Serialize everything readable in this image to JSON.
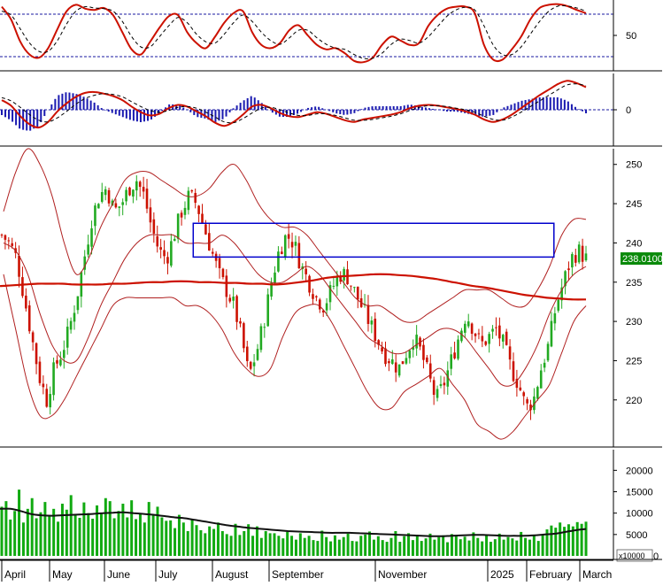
{
  "chart_data": [
    {
      "panel": "stochastic",
      "type": "line",
      "y_ticks": [
        50
      ],
      "reference_levels": [
        80,
        20
      ],
      "ylim": [
        0,
        100
      ],
      "series": [
        {
          "color": "#cc1100",
          "style": "solid",
          "values": [
            95,
            75,
            40,
            20,
            15,
            30,
            60,
            88,
            98,
            92,
            90,
            93,
            82,
            55,
            28,
            20,
            40,
            62,
            80,
            82,
            55,
            38,
            30,
            48,
            70,
            85,
            88,
            55,
            35,
            30,
            38,
            58,
            66,
            50,
            35,
            28,
            30,
            22,
            10,
            8,
            15,
            35,
            48,
            42,
            35,
            38,
            65,
            82,
            92,
            95,
            95,
            85,
            35,
            12,
            12,
            28,
            48,
            75,
            93,
            98,
            99,
            96,
            90,
            85
          ]
        },
        {
          "color": "#000000",
          "style": "dashed",
          "values": [
            88,
            82,
            60,
            38,
            25,
            25,
            42,
            68,
            88,
            95,
            93,
            92,
            88,
            72,
            48,
            32,
            32,
            48,
            65,
            78,
            70,
            52,
            40,
            38,
            52,
            70,
            82,
            72,
            55,
            42,
            36,
            46,
            58,
            58,
            46,
            36,
            30,
            28,
            20,
            14,
            14,
            22,
            36,
            44,
            42,
            38,
            48,
            64,
            80,
            90,
            94,
            90,
            65,
            35,
            20,
            20,
            32,
            52,
            72,
            88,
            96,
            96,
            93,
            88
          ]
        }
      ]
    },
    {
      "panel": "macd",
      "type": "line",
      "y_ticks": [
        0
      ],
      "ylim": [
        -4.5,
        4.5
      ],
      "series": [
        {
          "color": "#cc1100",
          "style": "solid",
          "values": [
            1.2,
            0.5,
            -0.8,
            -1.8,
            -2.2,
            -1.5,
            -0.2,
            0.8,
            1.6,
            2.1,
            2.2,
            2.0,
            1.7,
            1.2,
            0.4,
            -0.3,
            -0.7,
            -0.5,
            0.2,
            0.6,
            0.4,
            -0.2,
            -0.8,
            -1.6,
            -2.0,
            -1.5,
            -0.6,
            0.4,
            0.6,
            0.2,
            -0.4,
            -0.8,
            -0.9,
            -0.6,
            -0.3,
            -0.5,
            -0.9,
            -1.3,
            -1.5,
            -1.2,
            -1.0,
            -0.8,
            -0.6,
            -0.3,
            0.2,
            0.5,
            0.6,
            0.5,
            0.3,
            0.1,
            -0.2,
            -0.6,
            -1.2,
            -1.5,
            -1.2,
            -0.6,
            0.2,
            1.0,
            1.8,
            2.5,
            3.2,
            3.6,
            3.3,
            2.8
          ]
        },
        {
          "color": "#000000",
          "style": "dashed",
          "values": [
            1.5,
            1.1,
            0.3,
            -0.6,
            -1.3,
            -1.5,
            -1.0,
            -0.2,
            0.7,
            1.4,
            1.8,
            2.0,
            1.9,
            1.6,
            1.0,
            0.4,
            -0.1,
            -0.3,
            -0.1,
            0.3,
            0.4,
            0.2,
            -0.3,
            -0.9,
            -1.5,
            -1.6,
            -1.1,
            -0.4,
            0.2,
            0.3,
            0.0,
            -0.4,
            -0.7,
            -0.7,
            -0.5,
            -0.5,
            -0.7,
            -1.0,
            -1.3,
            -1.3,
            -1.2,
            -1.0,
            -0.8,
            -0.5,
            -0.1,
            0.3,
            0.5,
            0.5,
            0.4,
            0.2,
            0.0,
            -0.3,
            -0.8,
            -1.2,
            -1.3,
            -0.9,
            -0.3,
            0.4,
            1.1,
            1.8,
            2.5,
            3.1,
            3.2,
            3.0
          ]
        }
      ]
    },
    {
      "panel": "price",
      "type": "candlestick",
      "y_ticks": [
        220,
        225,
        230,
        235,
        240,
        245,
        250
      ],
      "ylim": [
        214,
        252
      ],
      "last_price_label": "238.0100",
      "last_price": 238.01,
      "colors": {
        "up": "#22aa22",
        "down": "#cc1100",
        "ma": "#cc1100",
        "bands": "#b02020",
        "box": "#0000cc"
      },
      "close": [
        241,
        240,
        238,
        233,
        228,
        223,
        220,
        224,
        226,
        229,
        233,
        238,
        243,
        246,
        247,
        244,
        245,
        247,
        248,
        246,
        242,
        239,
        238,
        241,
        244,
        246,
        245,
        242,
        239,
        236,
        234,
        232,
        228,
        223,
        226,
        230,
        235,
        239,
        241,
        240,
        237,
        235,
        233,
        232,
        234,
        236,
        236,
        234,
        232,
        230,
        228,
        226,
        225,
        224,
        226,
        228,
        226,
        223,
        220,
        222,
        225,
        228,
        231,
        229,
        227,
        228,
        229,
        227,
        224,
        222,
        219,
        220,
        224,
        227,
        232,
        235,
        238,
        239,
        238
      ],
      "ma": [
        234.5,
        234.6,
        234.7,
        234.8,
        234.8,
        234.8,
        234.7,
        234.7,
        234.7,
        234.8,
        234.8,
        234.9,
        235.0,
        235.0,
        235.1,
        235.1,
        235.0,
        235.0,
        234.9,
        234.9,
        234.8,
        234.8,
        234.7,
        234.8,
        235.0,
        235.2,
        235.5,
        235.7,
        235.8,
        235.9,
        236.0,
        236.0,
        235.9,
        235.8,
        235.6,
        235.4,
        235.1,
        234.8,
        234.5,
        234.3,
        234.0,
        233.7,
        233.4,
        233.2,
        233.0,
        232.9,
        232.8,
        232.8
      ],
      "bb_upper": [
        244,
        249,
        252,
        250,
        246,
        240,
        236,
        238,
        242,
        245,
        248,
        249,
        249,
        248,
        247,
        246,
        246,
        247,
        249,
        250,
        248,
        245,
        243,
        242,
        242,
        241,
        239,
        237,
        235,
        233,
        232,
        232,
        231,
        230,
        230,
        231,
        232,
        233,
        234,
        234,
        234,
        233,
        232,
        232,
        234,
        237,
        241,
        243,
        243
      ],
      "bb_mid": [
        240,
        239,
        236,
        231,
        227,
        225,
        225,
        228,
        232,
        235,
        238,
        240,
        241,
        241,
        241,
        240,
        240,
        240,
        241,
        240,
        238,
        236,
        235,
        235,
        236,
        237,
        236,
        234,
        232,
        230,
        228,
        227,
        226,
        226,
        227,
        228,
        229,
        229,
        228,
        226,
        224,
        222,
        222,
        224,
        227,
        231,
        234,
        236,
        237
      ],
      "bb_lower": [
        236,
        229,
        222,
        218,
        218,
        220,
        223,
        226,
        229,
        232,
        233,
        233,
        233,
        233,
        233,
        232,
        232,
        231,
        229,
        226,
        224,
        223,
        224,
        228,
        231,
        232,
        232,
        230,
        227,
        224,
        221,
        219,
        219,
        221,
        222,
        223,
        224,
        222,
        220,
        217,
        216,
        215,
        216,
        218,
        220,
        222,
        226,
        230,
        232
      ],
      "range_box": [
        238.2,
        242.5
      ],
      "range_box_span": [
        0.315,
        0.903
      ]
    },
    {
      "panel": "volume",
      "type": "bar",
      "y_ticks": [
        0,
        5000,
        10000,
        15000,
        20000
      ],
      "y_tick_labels": [
        "0",
        "5000",
        "10000",
        "15000",
        "20000"
      ],
      "ylim": [
        0,
        24000
      ],
      "unit_label": "x10000",
      "volume_avg": [
        11000,
        11000,
        10500,
        9800,
        9500,
        9400,
        9500,
        9600,
        9700,
        9800,
        10000,
        10100,
        10200,
        10000,
        9800,
        9600,
        9300,
        9000,
        8800,
        8400,
        8000,
        7600,
        7200,
        6900,
        6600,
        6400,
        6200,
        6000,
        5800,
        5700,
        5600,
        5500,
        5400,
        5400,
        5400,
        5300,
        5200,
        5100,
        5000,
        4900,
        4800,
        4700,
        4600,
        4600,
        4700,
        4800,
        4900,
        4900,
        4800,
        4700,
        4700,
        4700,
        4800,
        5000,
        5200,
        5600,
        6000,
        6300
      ],
      "volume": [
        11500,
        12800,
        8500,
        10500,
        15500,
        7800,
        11000,
        13500,
        8800,
        10200,
        12600,
        9400,
        11000,
        8000,
        12200,
        10800,
        14200,
        9600,
        8900,
        12500,
        10000,
        8700,
        11800,
        9800,
        13500,
        12800,
        8800,
        10500,
        12200,
        9000,
        13000,
        8600,
        9900,
        7800,
        12600,
        9600,
        11500,
        9000,
        8200,
        8300,
        6500,
        9600,
        7800,
        5800,
        8500,
        7200,
        6000,
        5300,
        6900,
        6300,
        7800,
        5800,
        5100,
        4700,
        7500,
        4900,
        5800,
        7400,
        4700,
        6900,
        4200,
        5800,
        5300,
        5300,
        4700,
        4100,
        5600,
        4700,
        3800,
        5300,
        4200,
        4700,
        3700,
        3500,
        5900,
        4400,
        3400,
        4800,
        3800,
        4400,
        5200,
        3500,
        3400,
        4700,
        5000,
        5700,
        3800,
        4600,
        3700,
        3300,
        4200,
        5800,
        3300,
        4600,
        5300,
        3700,
        4900,
        3500,
        4100,
        5200,
        3800,
        4400,
        4800,
        3200,
        5100,
        4600,
        3900,
        4500,
        3600,
        5500,
        4200,
        3400,
        4800,
        3300,
        3900,
        5200,
        3800,
        4400,
        4100,
        3600,
        5600,
        4200,
        3800,
        4700,
        3500,
        4900,
        6200,
        7100,
        6600,
        7800,
        6800,
        7400,
        6900,
        7900,
        7500,
        8000
      ],
      "volume_last_up": [
        0.97,
        0.03
      ]
    }
  ],
  "time_axis": {
    "labels": [
      "April",
      "May",
      "June",
      "July",
      "August",
      "September",
      "November",
      "2025",
      "February",
      "March"
    ]
  }
}
